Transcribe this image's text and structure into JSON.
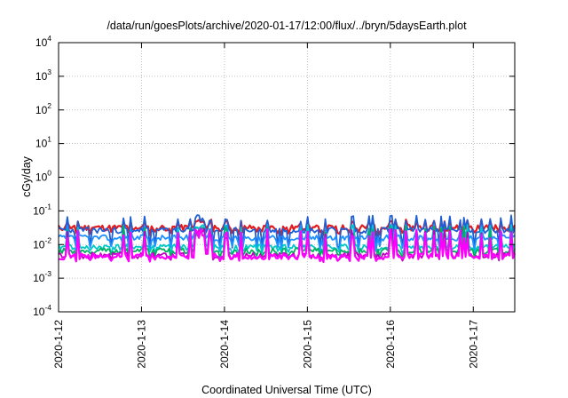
{
  "chart_data": {
    "type": "line",
    "title": "/data/run/goesPlots/archive/2020-01-17/12:00/flux/../bryn/5daysEarth.plot",
    "xlabel": "Coordinated Universal Time (UTC)",
    "ylabel": "cGy/day",
    "yscale": "log",
    "ylim": [
      0.0001,
      10000
    ],
    "xlim_days": [
      "2020-01-12 00:00",
      "2020-01-17 12:00"
    ],
    "x_ticks": [
      "2020-1-12",
      "2020-1-13",
      "2020-1-14",
      "2020-1-15",
      "2020-1-16",
      "2020-1-17"
    ],
    "y_ticks": [
      {
        "base": "10",
        "exp": "-4",
        "value": 0.0001
      },
      {
        "base": "10",
        "exp": "-3",
        "value": 0.001
      },
      {
        "base": "10",
        "exp": "-2",
        "value": 0.01
      },
      {
        "base": "10",
        "exp": "-1",
        "value": 0.1
      },
      {
        "base": "10",
        "exp": "0",
        "value": 1
      },
      {
        "base": "10",
        "exp": "1",
        "value": 10
      },
      {
        "base": "10",
        "exp": "2",
        "value": 100
      },
      {
        "base": "10",
        "exp": "3",
        "value": 1000
      },
      {
        "base": "10",
        "exp": "4",
        "value": 10000
      }
    ],
    "grid": true,
    "legend": "none",
    "series": [
      {
        "color": "#e41a1c",
        "base": 0.032,
        "spike": 0.055,
        "dip": 0.022,
        "seed": 11
      },
      {
        "color": "#1f5fd6",
        "base": 0.027,
        "spike": 0.075,
        "dip": 0.009,
        "seed": 23
      },
      {
        "color": "#1e90ff",
        "base": 0.016,
        "spike": 0.04,
        "dip": 0.008,
        "seed": 37
      },
      {
        "color": "#00c8c8",
        "base": 0.0085,
        "spike": 0.04,
        "dip": 0.006,
        "seed": 41
      },
      {
        "color": "#00b060",
        "base": 0.0065,
        "spike": 0.035,
        "dip": 0.0048,
        "seed": 53
      },
      {
        "color": "#c000c0",
        "base": 0.0048,
        "spike": 0.03,
        "dip": 0.0038,
        "seed": 67
      },
      {
        "color": "#ff00ff",
        "base": 0.0045,
        "spike": 0.03,
        "dip": 0.0035,
        "seed": 71
      }
    ]
  }
}
